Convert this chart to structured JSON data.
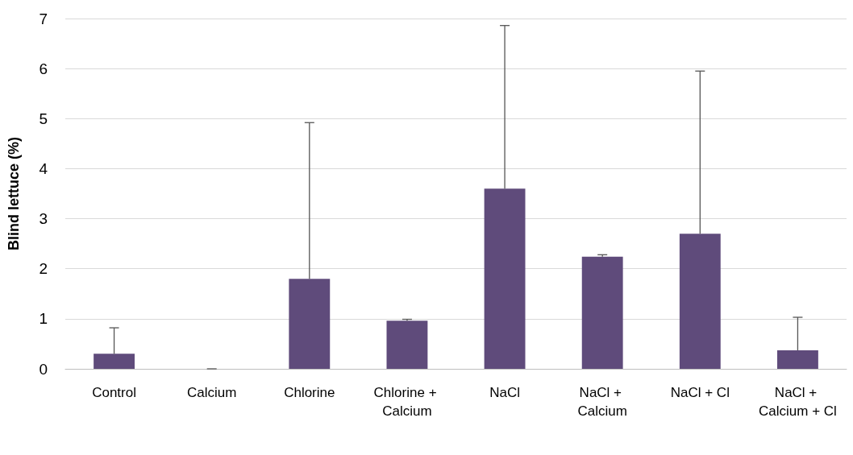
{
  "chart_data": {
    "type": "bar",
    "ylabel": "Blind lettuce (%)",
    "categories": [
      "Control",
      "Calcium",
      "Chlorine",
      "Chlorine + Calcium",
      "NaCl",
      "NaCl + Calcium",
      "NaCl + Cl",
      "NaCl + Calcium + Cl"
    ],
    "values": [
      0.3,
      0,
      1.8,
      0.96,
      3.6,
      2.24,
      2.7,
      0.37
    ],
    "errors": [
      [
        0.3,
        0.82
      ],
      [
        0,
        0
      ],
      [
        1.8,
        4.92
      ],
      [
        0.96,
        0.99
      ],
      [
        3.6,
        6.86
      ],
      [
        2.24,
        2.28
      ],
      [
        2.7,
        5.95
      ],
      [
        0.37,
        1.03
      ]
    ],
    "color": "#5f4b7b",
    "ylim": [
      0,
      7
    ],
    "yticks": [
      0,
      1,
      2,
      3,
      4,
      5,
      6,
      7
    ],
    "grid": "y"
  }
}
